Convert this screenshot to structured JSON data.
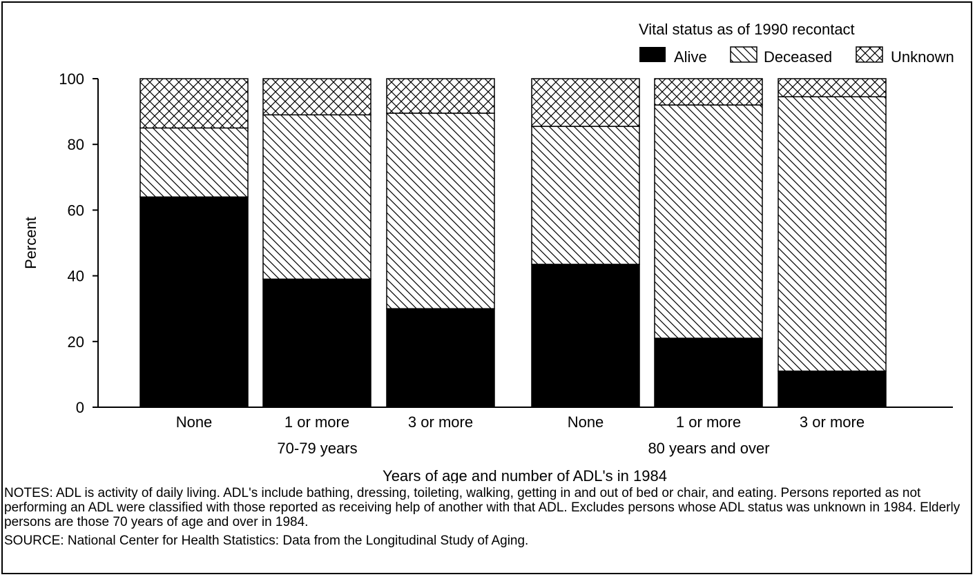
{
  "chart_data": {
    "type": "bar",
    "stacked": true,
    "ylabel": "Percent",
    "xlabel": "Years of age and number of ADL's in 1984",
    "yticks": [
      0,
      20,
      40,
      60,
      80,
      100
    ],
    "ylim": [
      0,
      100
    ],
    "legend_title": "Vital status as of 1990 recontact",
    "legend_position": "top-right",
    "groups": [
      {
        "label": "70-79 years",
        "categories": [
          "None",
          "1 or more",
          "3 or more"
        ]
      },
      {
        "label": "80 years and over",
        "categories": [
          "None",
          "1 or more",
          "3 or more"
        ]
      }
    ],
    "categories": [
      "None",
      "1 or more",
      "3 or more",
      "None",
      "1 or more",
      "3 or more"
    ],
    "series": [
      {
        "name": "Alive",
        "pattern": "solid",
        "color": "#000000",
        "values": [
          64,
          39,
          30,
          43.5,
          21,
          11
        ]
      },
      {
        "name": "Deceased",
        "pattern": "diagonal",
        "color": "#000000",
        "values": [
          21,
          50,
          59.5,
          42,
          71,
          83.5
        ]
      },
      {
        "name": "Unknown",
        "pattern": "crosshatch",
        "color": "#000000",
        "values": [
          15,
          11,
          10.5,
          14.5,
          8,
          5.5
        ]
      }
    ]
  },
  "notes": {
    "notes_text": "NOTES: ADL is activity of daily living. ADL's include bathing, dressing, toileting, walking, getting in and out of bed or chair, and eating. Persons reported as not performing an ADL were classified with those reported as receiving help of another with that ADL. Excludes persons whose ADL status was unknown in 1984. Elderly persons are those 70 years of age and over in 1984.",
    "source_text": "SOURCE: National Center for Health Statistics: Data from the Longitudinal Study of Aging."
  }
}
